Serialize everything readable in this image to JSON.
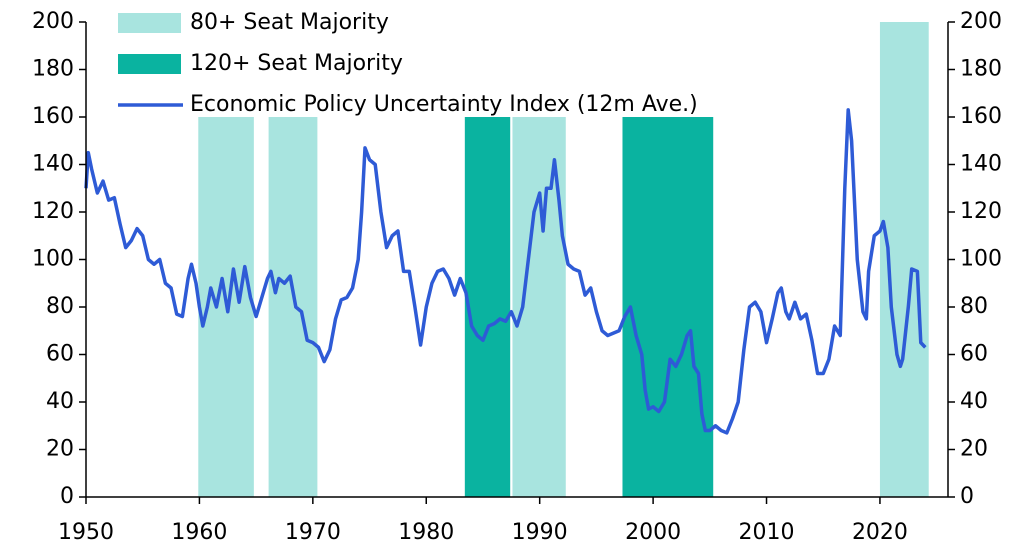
{
  "chart_data": {
    "type": "line",
    "xlim": [
      1950,
      2026
    ],
    "xticks": [
      1950,
      1960,
      1970,
      1980,
      1990,
      2000,
      2010,
      2020
    ],
    "ylim": [
      0,
      200
    ],
    "yticks": [
      0,
      20,
      40,
      60,
      80,
      100,
      120,
      140,
      160,
      180,
      200
    ],
    "y2lim": [
      0,
      200
    ],
    "y2ticks": [
      0,
      20,
      40,
      60,
      80,
      100,
      120,
      140,
      160,
      180,
      200
    ],
    "legend": "upper left",
    "series": [
      {
        "name": "80+ Seat Majority",
        "type": "band",
        "color": "#a8e4df",
        "x": [
          [
            1959.9,
            1964.8
          ],
          [
            1966.1,
            1970.4
          ],
          [
            1987.6,
            1992.3
          ],
          [
            2020.0,
            2024.3
          ]
        ],
        "values": [
          160,
          160,
          160,
          200
        ]
      },
      {
        "name": "120+ Seat Majority",
        "type": "band",
        "color": "#0ab3a0",
        "x": [
          [
            1983.4,
            1987.4
          ],
          [
            1997.3,
            2005.3
          ]
        ],
        "values": [
          160,
          160
        ]
      },
      {
        "name": "Economic Policy Uncertainty Index (12m Ave.)",
        "type": "line",
        "color": "#2e5bd6",
        "x": [
          1950,
          1950.2,
          1950.5,
          1951,
          1951.5,
          1952,
          1952.5,
          1953,
          1953.5,
          1954,
          1954.5,
          1955,
          1955.5,
          1956,
          1956.5,
          1957,
          1957.5,
          1958,
          1958.5,
          1959,
          1959.3,
          1959.7,
          1960,
          1960.3,
          1960.7,
          1961,
          1961.5,
          1962,
          1962.5,
          1963,
          1963.5,
          1964,
          1964.5,
          1965,
          1965.5,
          1966,
          1966.3,
          1966.7,
          1967,
          1967.5,
          1968,
          1968.5,
          1969,
          1969.5,
          1970,
          1970.5,
          1971,
          1971.5,
          1972,
          1972.5,
          1973,
          1973.5,
          1974,
          1974.3,
          1974.6,
          1975,
          1975.5,
          1976,
          1976.5,
          1977,
          1977.5,
          1978,
          1978.5,
          1979,
          1979.5,
          1980,
          1980.5,
          1981,
          1981.5,
          1982,
          1982.5,
          1983,
          1983.5,
          1984,
          1984.5,
          1985,
          1985.5,
          1986,
          1986.5,
          1987,
          1987.5,
          1988,
          1988.5,
          1989,
          1989.5,
          1990,
          1990.3,
          1990.6,
          1991,
          1991.3,
          1991.7,
          1992,
          1992.5,
          1993,
          1993.5,
          1994,
          1994.5,
          1995,
          1995.5,
          1996,
          1996.5,
          1997,
          1997.5,
          1998,
          1998.5,
          1999,
          1999.3,
          1999.6,
          2000,
          2000.5,
          2001,
          2001.5,
          2002,
          2002.5,
          2003,
          2003.3,
          2003.6,
          2004,
          2004.3,
          2004.6,
          2005,
          2005.5,
          2006,
          2006.5,
          2007,
          2007.5,
          2008,
          2008.5,
          2009,
          2009.5,
          2010,
          2010.5,
          2011,
          2011.3,
          2011.7,
          2012,
          2012.5,
          2013,
          2013.5,
          2014,
          2014.5,
          2015,
          2015.5,
          2016,
          2016.5,
          2016.9,
          2017.2,
          2017.5,
          2018,
          2018.5,
          2018.8,
          2019,
          2019.5,
          2020,
          2020.3,
          2020.7,
          2021,
          2021.5,
          2021.8,
          2022,
          2022.5,
          2022.8,
          2023.3,
          2023.6,
          2024
        ],
        "values": [
          130,
          145,
          138,
          128,
          133,
          125,
          126,
          115,
          105,
          108,
          113,
          110,
          100,
          98,
          100,
          90,
          88,
          77,
          76,
          92,
          98,
          90,
          80,
          72,
          80,
          88,
          80,
          92,
          78,
          96,
          82,
          97,
          84,
          76,
          84,
          92,
          95,
          86,
          92,
          90,
          93,
          80,
          78,
          66,
          65,
          63,
          57,
          62,
          75,
          83,
          84,
          88,
          100,
          120,
          147,
          142,
          140,
          120,
          105,
          110,
          112,
          95,
          95,
          80,
          64,
          80,
          90,
          95,
          96,
          92,
          85,
          92,
          86,
          72,
          68,
          66,
          72,
          73,
          75,
          74,
          78,
          72,
          80,
          100,
          120,
          128,
          112,
          130,
          130,
          142,
          125,
          110,
          98,
          96,
          95,
          85,
          88,
          78,
          70,
          68,
          69,
          70,
          76,
          80,
          68,
          60,
          45,
          37,
          38,
          36,
          40,
          58,
          55,
          60,
          68,
          70,
          55,
          52,
          35,
          28,
          28,
          30,
          28,
          27,
          33,
          40,
          62,
          80,
          82,
          78,
          65,
          75,
          86,
          88,
          78,
          75,
          82,
          75,
          77,
          66,
          52,
          52,
          58,
          72,
          68,
          130,
          163,
          150,
          100,
          78,
          75,
          95,
          110,
          112,
          116,
          105,
          80,
          60,
          55,
          58,
          80,
          96,
          95,
          65,
          63
        ]
      }
    ]
  }
}
